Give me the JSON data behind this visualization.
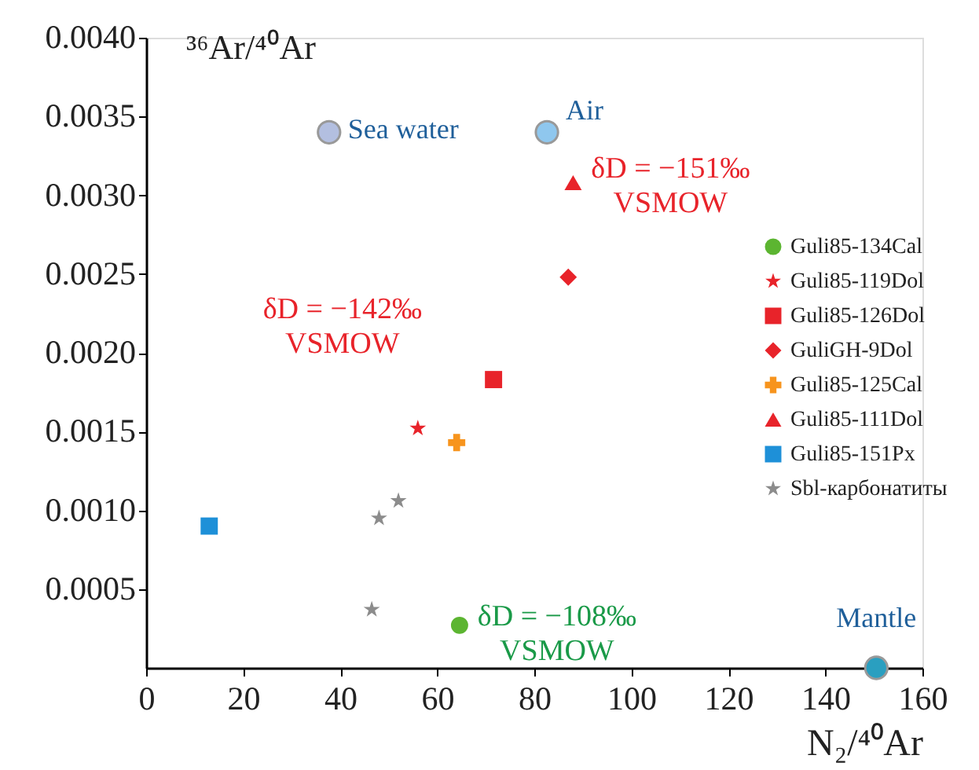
{
  "chart_data": {
    "type": "scatter",
    "xlabel": "N₂/⁴⁰Ar",
    "ylabel": "³⁶Ar/⁴⁰Ar",
    "xlim": [
      0,
      160
    ],
    "ylim": [
      0,
      0.004
    ],
    "xticks": [
      0,
      20,
      40,
      60,
      80,
      100,
      120,
      140,
      160
    ],
    "yticks": [
      0.0005,
      {
        "value": 0.001,
        "label": "0.0010"
      },
      0.0015,
      {
        "value": 0.002,
        "label": "0.0020"
      },
      0.0025,
      {
        "value": 0.003,
        "label": "0.0030"
      },
      0.0035,
      {
        "value": 0.004,
        "label": "0.0040"
      }
    ],
    "legend": "right",
    "series": [
      {
        "name": "Guli85-134Cal",
        "color": "#5cb531",
        "marker": "circle",
        "x": [
          64.6
        ],
        "values": [
          0.00027
        ]
      },
      {
        "name": "Guli85-119Dol",
        "color": "#e8232a",
        "marker": "star",
        "x": [
          56
        ],
        "values": [
          0.00152
        ]
      },
      {
        "name": "Guli85-126Dol",
        "color": "#e8232a",
        "marker": "square",
        "x": [
          71.6
        ],
        "values": [
          0.00183
        ]
      },
      {
        "name": "GuliGH-9Dol",
        "color": "#e8232a",
        "marker": "diamond",
        "x": [
          87
        ],
        "values": [
          0.00248
        ]
      },
      {
        "name": "Guli85-125Cal",
        "color": "#f7941d",
        "marker": "cross",
        "x": [
          64
        ],
        "values": [
          0.00143
        ]
      },
      {
        "name": "Guli85-111Dol",
        "color": "#e8232a",
        "marker": "triangle",
        "x": [
          88
        ],
        "values": [
          0.00308
        ]
      },
      {
        "name": "Guli85-151Px",
        "color": "#1e90d8",
        "marker": "square",
        "x": [
          13
        ],
        "values": [
          0.0009
        ]
      },
      {
        "name": "Sbl-карбонатиты",
        "color": "#8c8c8c",
        "marker": "star",
        "x": [
          48,
          52,
          46.5
        ],
        "values": [
          0.00095,
          0.00106,
          0.00037
        ]
      },
      {
        "color": "#b3bfe0",
        "marker": "circle",
        "x": [
          37.7
        ],
        "values": [
          0.0034
        ]
      },
      {
        "color": "#8fc7ee",
        "marker": "circle",
        "x": [
          82.6
        ],
        "values": [
          0.0034
        ]
      },
      {
        "color": "#2a9fc0",
        "marker": "circle",
        "x": [
          150.5
        ],
        "values": [
          0
        ]
      }
    ],
    "annotations": [
      {
        "text": "Sea water",
        "x": 37.7,
        "y": 0.0034
      },
      {
        "text": "Air",
        "x": 82.6,
        "y": 0.0034
      },
      {
        "text": "Mantle",
        "x": 150.5,
        "y": 0
      },
      {
        "text": "δD = −151‰\nVSMOW",
        "x": 88,
        "y": 0.00308
      },
      {
        "text": "δD = −142‰\nVSMOW",
        "x": 56,
        "y": 0.00152
      },
      {
        "text": "δD = −108‰\nVSMOW",
        "x": 64.6,
        "y": 0.00027
      }
    ]
  }
}
